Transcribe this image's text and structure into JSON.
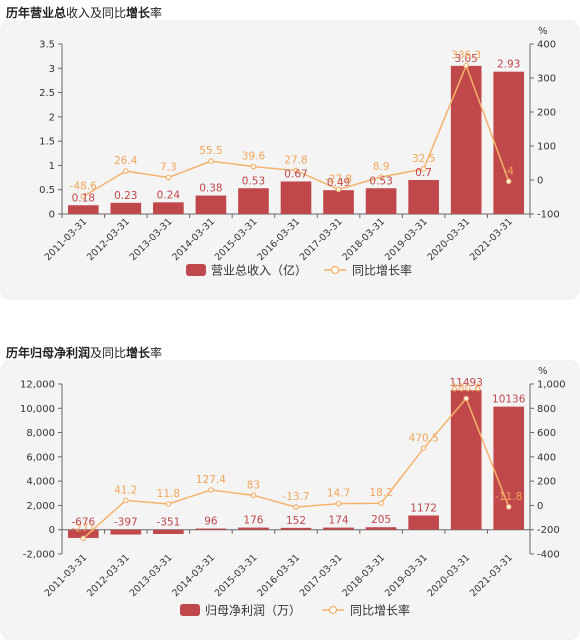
{
  "charts": [
    {
      "title_bold_1": "历年营业总",
      "title_plain_1": "收入及同比",
      "title_bold_2": "增长",
      "title_plain_2": "率",
      "chart_data": {
        "type": "bar",
        "categories": [
          "2011-03-31",
          "2012-03-31",
          "2013-03-31",
          "2014-03-31",
          "2015-03-31",
          "2016-03-31",
          "2017-03-31",
          "2018-03-31",
          "2019-03-31",
          "2020-03-31",
          "2021-03-31"
        ],
        "series": [
          {
            "name": "营业总收入（亿）",
            "type": "bar",
            "axis": "left",
            "values": [
              0.18,
              0.23,
              0.24,
              0.38,
              0.53,
              0.67,
              0.49,
              0.53,
              0.7,
              3.05,
              2.93
            ],
            "labels": [
              "0.18",
              "0.23",
              "0.24",
              "0.38",
              "0.53",
              "0.67",
              "0.49",
              "0.53",
              "0.7",
              "3.05",
              "2.93"
            ]
          },
          {
            "name": "同比增长率",
            "type": "line",
            "axis": "right",
            "values": [
              -48.6,
              26.4,
              7.3,
              55.5,
              39.6,
              27.8,
              -27.8,
              8.9,
              32.5,
              336.3,
              -4
            ],
            "labels": [
              "-48.6",
              "26.4",
              "7.3",
              "55.5",
              "39.6",
              "27.8",
              "-27.8",
              "8.9",
              "32.5",
              "336.3",
              "-4"
            ]
          }
        ],
        "yticks_left": [
          "0",
          "0.5",
          "1",
          "1.5",
          "2",
          "2.5",
          "3",
          "3.5"
        ],
        "yticks_right": [
          "-100",
          "0",
          "100",
          "200",
          "300",
          "400"
        ],
        "ylim_left": [
          0,
          3.5
        ],
        "ylim_right": [
          -100,
          400
        ],
        "right_unit": "%",
        "legend_position": "bottom"
      }
    },
    {
      "title_bold_1": "历年归母净利润",
      "title_plain_1": "及同比",
      "title_bold_2": "增长",
      "title_plain_2": "率",
      "chart_data": {
        "type": "bar",
        "categories": [
          "2011-03-31",
          "2012-03-31",
          "2013-03-31",
          "2014-03-31",
          "2015-03-31",
          "2016-03-31",
          "2017-03-31",
          "2018-03-31",
          "2019-03-31",
          "2020-03-31",
          "2021-03-31"
        ],
        "series": [
          {
            "name": "归母净利润（万）",
            "type": "bar",
            "axis": "left",
            "values": [
              -676,
              -397,
              -351,
              96,
              176,
              152,
              174,
              205,
              1172,
              11493,
              10136
            ],
            "labels": [
              "-676",
              "-397",
              "-351",
              "96",
              "176",
              "152",
              "174",
              "205",
              "1172",
              "11493",
              "10136"
            ]
          },
          {
            "name": "同比增长率",
            "type": "line",
            "axis": "right",
            "values": [
              -271,
              41.2,
              11.8,
              127.4,
              83,
              -13.7,
              14.7,
              18.2,
              470.5,
              880.6,
              -11.8
            ],
            "labels": [
              "-271",
              "41.2",
              "11.8",
              "127.4",
              "83",
              "-13.7",
              "14.7",
              "18.2",
              "470.5",
              "880.6",
              "-11.8"
            ]
          }
        ],
        "yticks_left": [
          "-2,000",
          "0",
          "2,000",
          "4,000",
          "6,000",
          "8,000",
          "10,000",
          "12,000"
        ],
        "yticks_right": [
          "-400",
          "-200",
          "0",
          "200",
          "400",
          "600",
          "800",
          "1,000"
        ],
        "ylim_left": [
          -2000,
          12000
        ],
        "ylim_right": [
          -400,
          1000
        ],
        "right_unit": "%",
        "legend_position": "bottom"
      }
    }
  ],
  "colors": {
    "bar": "#c0474a",
    "line": "#f4b26b",
    "bar_label": "#c0474a",
    "line_label": "#f2a55a",
    "axis": "#666666",
    "panel": "#f4f4f5"
  }
}
